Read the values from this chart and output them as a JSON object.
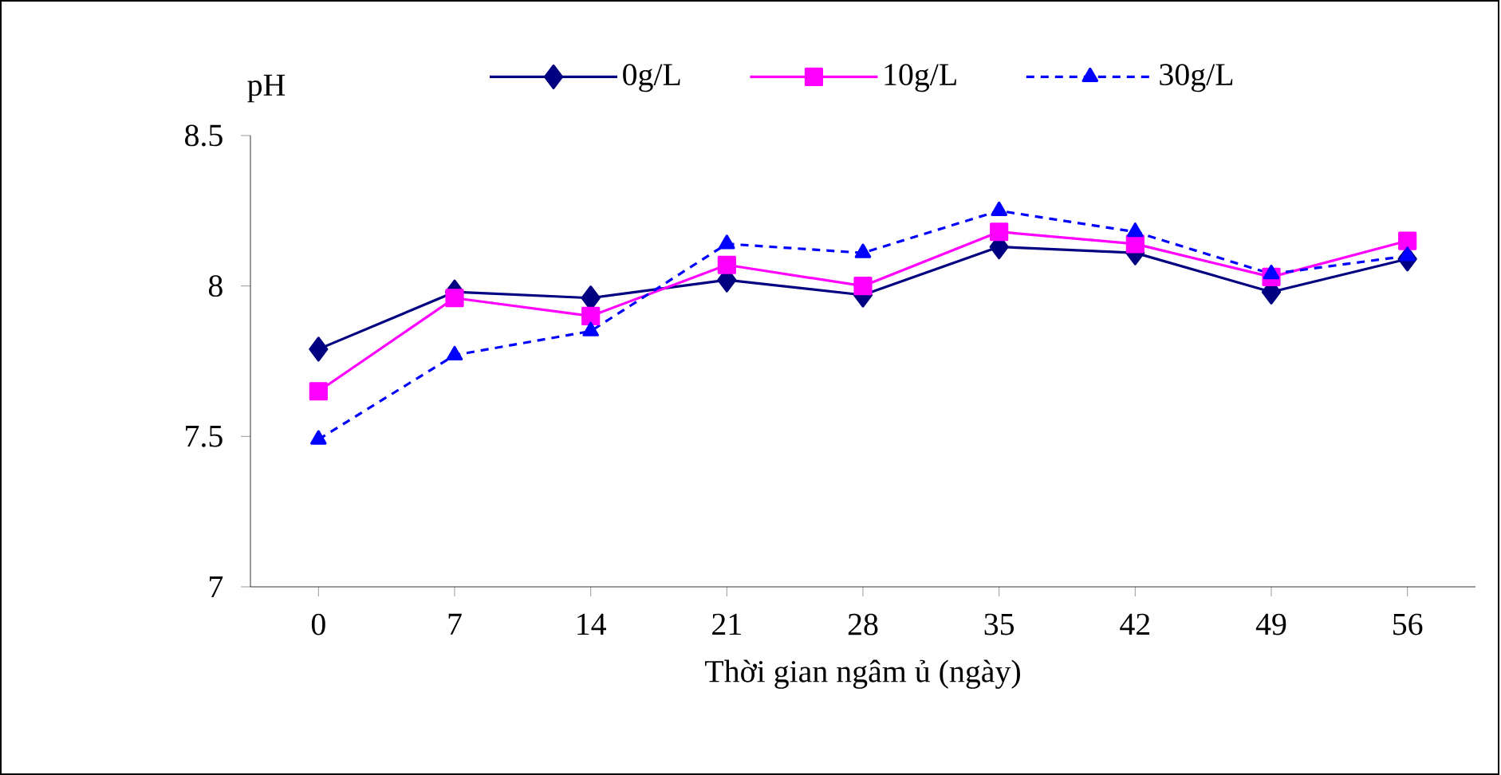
{
  "chart_data": {
    "type": "line",
    "ylabel": "pH",
    "xlabel": "Thời gian ngâm ủ (ngày)",
    "categories": [
      "0",
      "7",
      "14",
      "21",
      "28",
      "35",
      "42",
      "49",
      "56"
    ],
    "ylim": [
      7,
      8.5
    ],
    "yticks": [
      7,
      7.5,
      8,
      8.5
    ],
    "legend": "top",
    "grid": false,
    "series": [
      {
        "name": "0g/L",
        "color": "#000080",
        "marker": "diamond",
        "line_style": "solid",
        "values": [
          7.79,
          7.98,
          7.96,
          8.02,
          7.97,
          8.13,
          8.11,
          7.98,
          8.09
        ]
      },
      {
        "name": "10g/L",
        "color": "#ff00ff",
        "marker": "square",
        "line_style": "solid",
        "values": [
          7.65,
          7.96,
          7.9,
          8.07,
          8.0,
          8.18,
          8.14,
          8.03,
          8.15
        ]
      },
      {
        "name": "30g/L",
        "color": "#0000ff",
        "marker": "triangle",
        "line_style": "dashed",
        "values": [
          7.49,
          7.77,
          7.85,
          8.14,
          8.11,
          8.25,
          8.18,
          8.04,
          8.1
        ]
      }
    ]
  }
}
